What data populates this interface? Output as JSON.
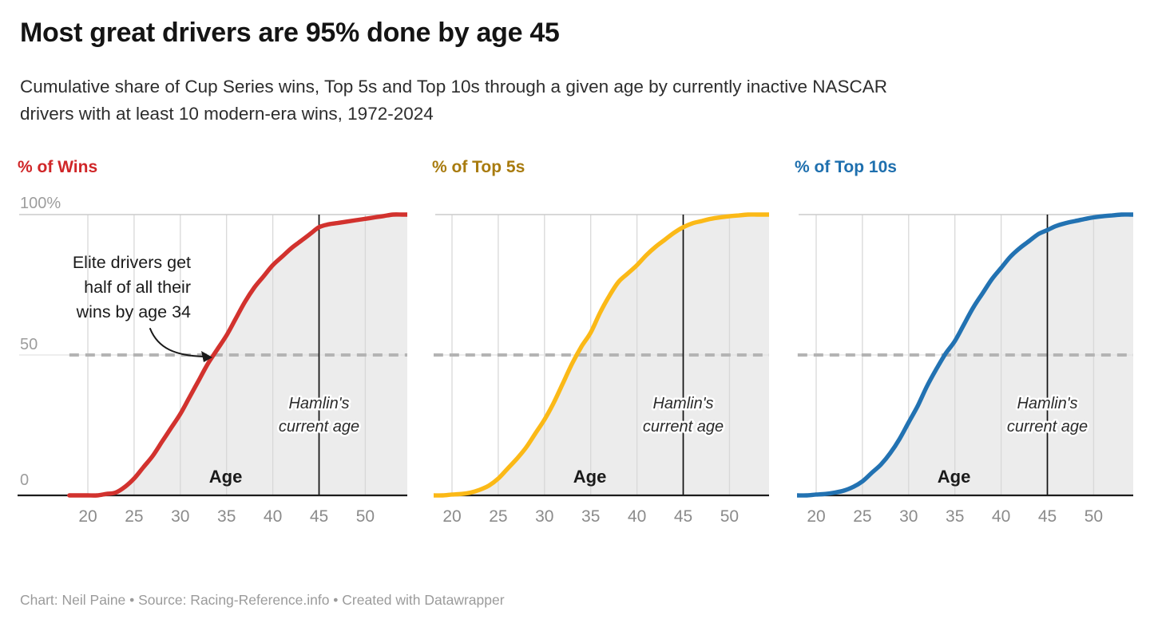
{
  "header": {
    "title": "Most great drivers are 95% done by age 45",
    "subtitle_lines": [
      "Cumulative share of Cup Series wins, Top 5s and Top 10s through a given age by currently inactive NASCAR",
      "drivers with at least 10 modern-era wins, 1972-2024"
    ]
  },
  "footer": {
    "credit": "Chart: Neil Paine • Source: Racing-Reference.info • Created with Datawrapper"
  },
  "chart_data": {
    "type": "line",
    "layout_hint": "three small multiples sharing x axis (age) and y axis (cumulative %), area under each line shaded, grid on",
    "xlabel": "Age",
    "ylim": [
      0,
      100
    ],
    "x_ticks": [
      20,
      25,
      30,
      35,
      40,
      45,
      50
    ],
    "y_ticks": [
      {
        "label": "100%",
        "value": 100
      },
      {
        "label": "50",
        "value": 50
      },
      {
        "label": "0",
        "value": 0
      }
    ],
    "x": [
      18,
      19,
      20,
      21,
      22,
      23,
      24,
      25,
      26,
      27,
      28,
      29,
      30,
      31,
      32,
      33,
      34,
      35,
      36,
      37,
      38,
      39,
      40,
      41,
      42,
      43,
      44,
      45,
      46,
      47,
      48,
      49,
      50,
      51,
      52,
      53,
      54
    ],
    "reference_line": {
      "value": 50,
      "style": "dashed",
      "color": "#b4b4b4"
    },
    "vertical_line": {
      "x": 45,
      "label_lines": [
        "Hamlin's",
        "current age"
      ],
      "color": "#111111"
    },
    "annotation": {
      "lines": [
        "Elite drivers get",
        "half of all their",
        "wins by age 34"
      ],
      "panel": 0,
      "arrow_points_to": {
        "x": 34,
        "y": 50
      }
    },
    "series": [
      {
        "name": "% of Wins",
        "color": "#d2322e",
        "label_color": "#d02628",
        "values": [
          0,
          0,
          0,
          0,
          0.5,
          1,
          3,
          6,
          10,
          14,
          19,
          24,
          29,
          35,
          41,
          47,
          52,
          57,
          63,
          69,
          74,
          78,
          82,
          85,
          88,
          90.5,
          93,
          95.5,
          96.5,
          97,
          97.5,
          98,
          98.5,
          99,
          99.5,
          100,
          100
        ]
      },
      {
        "name": "% of Top 5s",
        "color": "#fbb917",
        "label_color": "#a87b0e",
        "values": [
          0,
          0,
          0.3,
          0.5,
          1,
          2,
          3.5,
          6,
          9.5,
          13,
          17,
          22,
          27,
          33,
          40,
          47,
          53,
          58,
          65,
          71,
          76,
          79,
          82,
          85.5,
          88.5,
          91,
          93.5,
          95.5,
          96.9,
          97.7,
          98.5,
          99,
          99.4,
          99.7,
          100,
          100,
          100
        ]
      },
      {
        "name": "% of Top 10s",
        "color": "#2272b2",
        "label_color": "#1e6fae",
        "values": [
          0,
          0,
          0.3,
          0.5,
          1,
          1.7,
          3,
          5,
          8,
          11,
          15,
          20,
          26,
          32,
          39,
          45,
          50.5,
          55,
          61,
          67,
          72,
          77,
          81,
          85,
          88,
          90.5,
          93,
          94.5,
          96,
          97,
          97.7,
          98.4,
          99,
          99.4,
          99.7,
          100,
          100
        ]
      }
    ]
  }
}
